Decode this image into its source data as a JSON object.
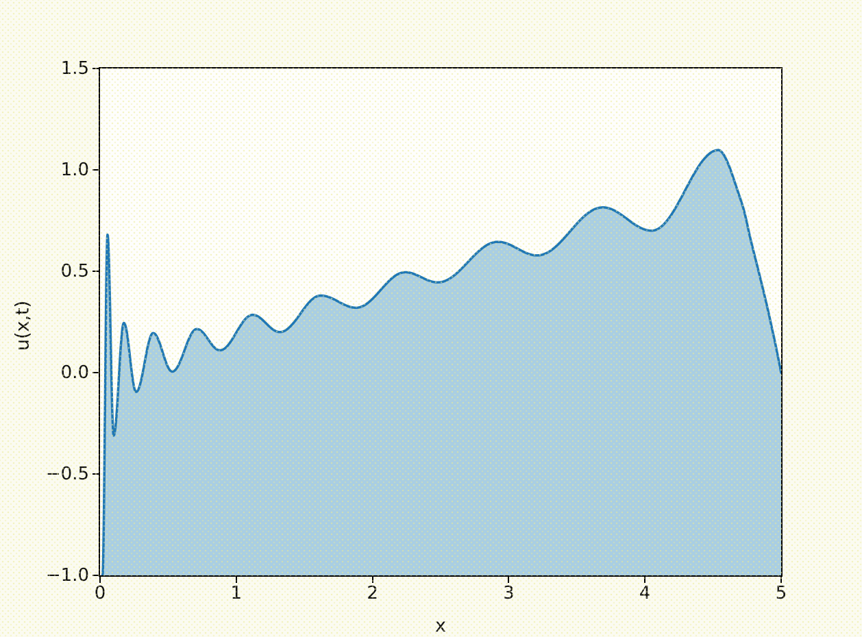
{
  "figure": {
    "background_color": "#fbfbf1",
    "plot_background_color": "#fefefc",
    "spine_color": "#000000"
  },
  "chart_data": {
    "type": "area",
    "title": "",
    "xlabel": "x",
    "ylabel": "u(x,t)",
    "xlim": [
      0,
      5
    ],
    "ylim": [
      -1.0,
      1.5
    ],
    "grid": false,
    "legend": "none",
    "line_color": "#1f77b4",
    "fill_color": "#a9cee3",
    "line_width": 3.5,
    "xticks": [
      {
        "v": 0,
        "label": "0"
      },
      {
        "v": 1,
        "label": "1"
      },
      {
        "v": 2,
        "label": "2"
      },
      {
        "v": 3,
        "label": "3"
      },
      {
        "v": 4,
        "label": "4"
      },
      {
        "v": 5,
        "label": "5"
      }
    ],
    "yticks": [
      {
        "v": -1.0,
        "label": "−1.0"
      },
      {
        "v": -0.5,
        "label": "−0.5"
      },
      {
        "v": 0.0,
        "label": "0.0"
      },
      {
        "v": 0.5,
        "label": "0.5"
      },
      {
        "v": 1.0,
        "label": "1.0"
      },
      {
        "v": 1.5,
        "label": "1.5"
      }
    ],
    "extrema": [
      [
        0.018,
        -1.0
      ],
      [
        0.055,
        0.68
      ],
      [
        0.1,
        -0.31
      ],
      [
        0.175,
        0.245
      ],
      [
        0.265,
        -0.095
      ],
      [
        0.39,
        0.195
      ],
      [
        0.53,
        0.005
      ],
      [
        0.71,
        0.215
      ],
      [
        0.88,
        0.11
      ],
      [
        1.12,
        0.285
      ],
      [
        1.32,
        0.2
      ],
      [
        1.62,
        0.38
      ],
      [
        1.88,
        0.32
      ],
      [
        2.24,
        0.495
      ],
      [
        2.48,
        0.445
      ],
      [
        2.92,
        0.645
      ],
      [
        3.21,
        0.578
      ],
      [
        3.69,
        0.815
      ],
      [
        4.05,
        0.7
      ],
      [
        4.54,
        1.098
      ]
    ],
    "tail_points": [
      [
        4.7,
        0.858
      ],
      [
        4.78,
        0.645
      ],
      [
        4.88,
        0.375
      ],
      [
        4.95,
        0.165
      ],
      [
        5.0,
        0.0
      ]
    ],
    "fill_baseline": -1.0
  }
}
